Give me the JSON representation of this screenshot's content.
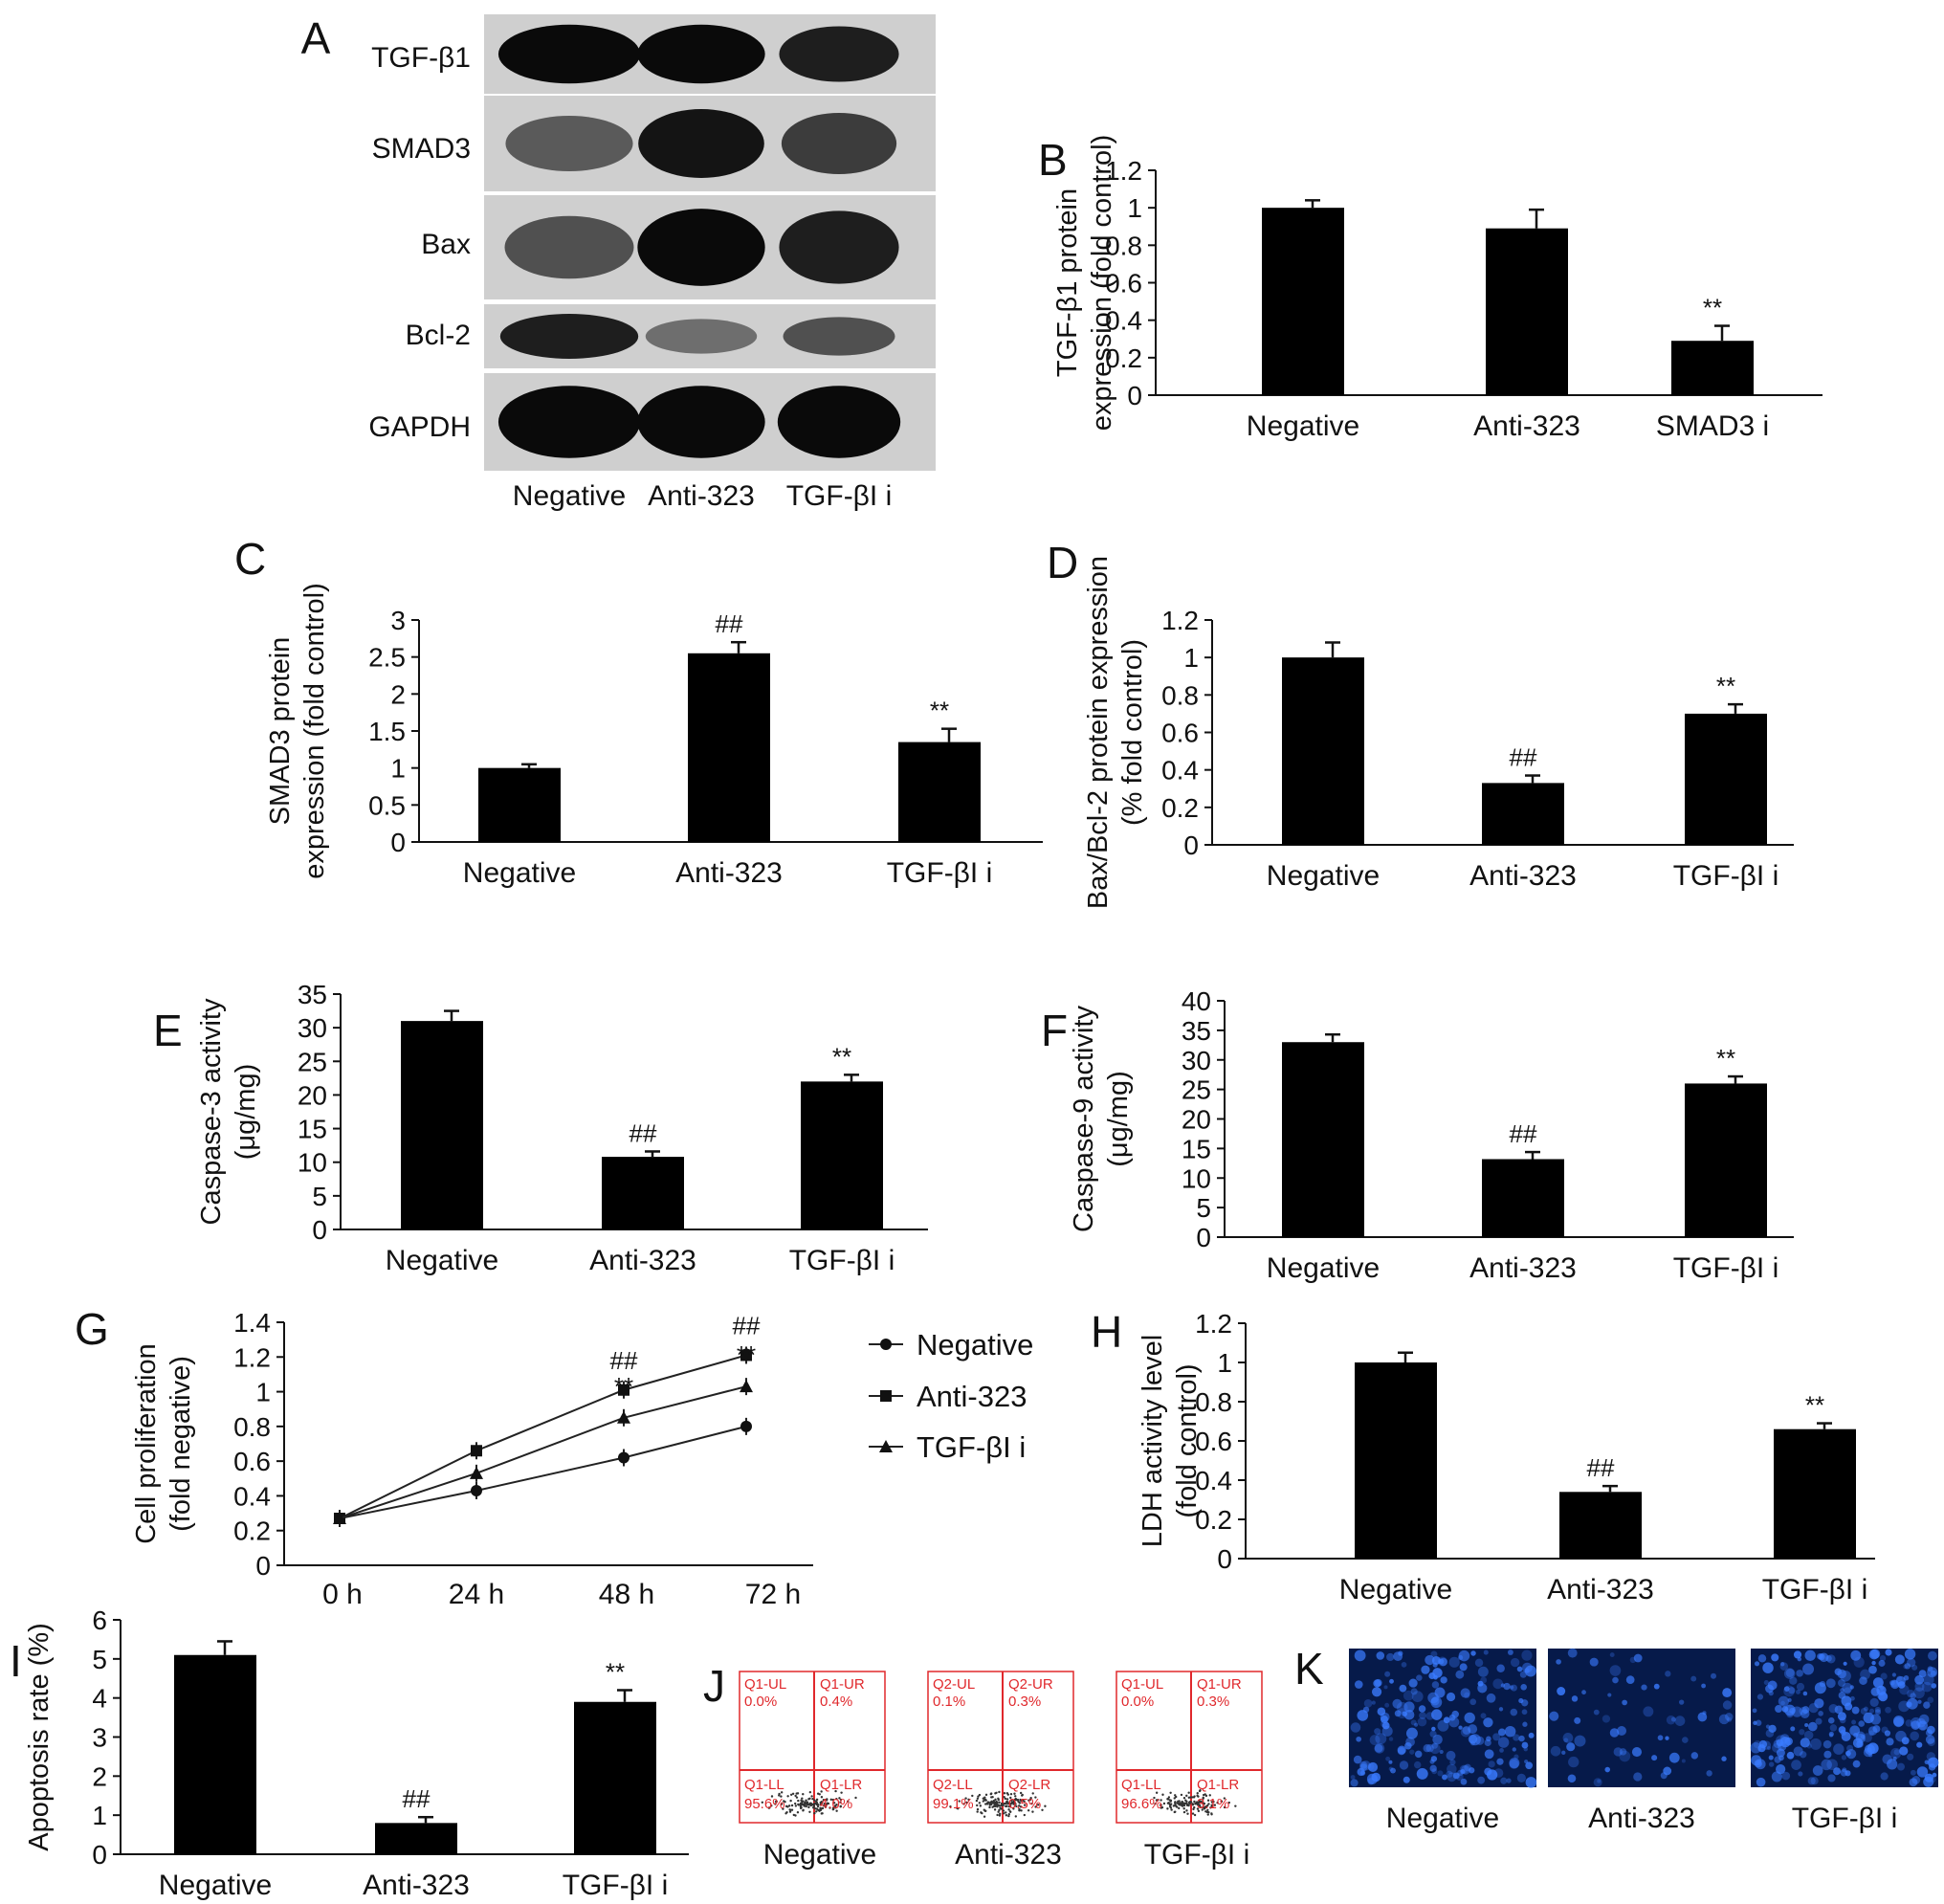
{
  "colors": {
    "bar": "#000000",
    "axis": "#111111",
    "flow_gate": "#e0282c",
    "blot_bg": "#cfcfcf",
    "fluor_bg": "#061a4a",
    "fluor_dot": "#3a7bff"
  },
  "panel_A": {
    "letter": "A",
    "proteins": [
      "TGF-β1",
      "SMAD3",
      "Bax",
      "Bcl-2",
      "GAPDH"
    ],
    "lanes": [
      "Negative",
      "Anti-323",
      "TGF-βI i"
    ],
    "band_intensity": [
      [
        0.95,
        0.95,
        0.85
      ],
      [
        0.55,
        0.9,
        0.7
      ],
      [
        0.6,
        0.95,
        0.85
      ],
      [
        0.85,
        0.45,
        0.6
      ],
      [
        0.95,
        0.95,
        0.95
      ]
    ]
  },
  "chart_data": [
    {
      "id": "B",
      "type": "bar",
      "letter": "B",
      "ylabel": [
        "TGF-β1 protein",
        "expression (fold control)"
      ],
      "categories": [
        "Negative",
        "Anti-323",
        "SMAD3 i"
      ],
      "values": [
        1.0,
        0.89,
        0.29
      ],
      "errors": [
        0.04,
        0.1,
        0.08
      ],
      "sig": [
        "",
        "",
        "**"
      ],
      "ylim": [
        0,
        1.2
      ],
      "ticks": [
        "0",
        "0.2",
        "0.4",
        "0.6",
        "0.8",
        "1",
        "1.2"
      ]
    },
    {
      "id": "C",
      "type": "bar",
      "letter": "C",
      "ylabel": [
        "SMAD3 protein",
        "expression (fold control)"
      ],
      "categories": [
        "Negative",
        "Anti-323",
        "TGF-βI i"
      ],
      "values": [
        1.0,
        2.55,
        1.35
      ],
      "errors": [
        0.05,
        0.15,
        0.18
      ],
      "sig": [
        "",
        "##",
        "**"
      ],
      "ylim": [
        0,
        3
      ],
      "ticks": [
        "0",
        "0.5",
        "1",
        "1.5",
        "2",
        "2.5",
        "3"
      ]
    },
    {
      "id": "D",
      "type": "bar",
      "letter": "D",
      "ylabel": [
        "Bax/Bcl-2 protein expression",
        "(% fold control)"
      ],
      "categories": [
        "Negative",
        "Anti-323",
        "TGF-βI i"
      ],
      "values": [
        1.0,
        0.33,
        0.7
      ],
      "errors": [
        0.08,
        0.04,
        0.05
      ],
      "sig": [
        "",
        "##",
        "**"
      ],
      "ylim": [
        0,
        1.2
      ],
      "ticks": [
        "0",
        "0.2",
        "0.4",
        "0.6",
        "0.8",
        "1",
        "1.2"
      ]
    },
    {
      "id": "E",
      "type": "bar",
      "letter": "E",
      "ylabel": [
        "Caspase-3 activity",
        "(μg/mg)"
      ],
      "categories": [
        "Negative",
        "Anti-323",
        "TGF-βI i"
      ],
      "values": [
        31,
        10.8,
        22
      ],
      "errors": [
        1.5,
        0.8,
        1.0
      ],
      "sig": [
        "",
        "##",
        "**"
      ],
      "ylim": [
        0,
        35
      ],
      "ticks": [
        "0",
        "5",
        "10",
        "15",
        "20",
        "25",
        "30",
        "35"
      ]
    },
    {
      "id": "F",
      "type": "bar",
      "letter": "F",
      "ylabel": [
        "Caspase-9 activity",
        "(μg/mg)"
      ],
      "categories": [
        "Negative",
        "Anti-323",
        "TGF-βI i"
      ],
      "values": [
        33,
        13.2,
        26
      ],
      "errors": [
        1.3,
        1.2,
        1.2
      ],
      "sig": [
        "",
        "##",
        "**"
      ],
      "ylim": [
        0,
        40
      ],
      "ticks": [
        "0",
        "5",
        "10",
        "15",
        "20",
        "25",
        "30",
        "35",
        "40"
      ]
    },
    {
      "id": "G",
      "type": "line",
      "letter": "G",
      "ylabel": [
        "Cell proliferation",
        "(fold negative)"
      ],
      "x": [
        "0 h",
        "24 h",
        "48 h",
        "72 h"
      ],
      "series": [
        {
          "name": "Negative",
          "marker": "circle",
          "values": [
            0.27,
            0.43,
            0.62,
            0.8
          ],
          "sig": [
            "",
            "",
            "",
            ""
          ]
        },
        {
          "name": "Anti-323",
          "marker": "square",
          "values": [
            0.27,
            0.66,
            1.01,
            1.21
          ],
          "sig": [
            "",
            "",
            "##",
            "##"
          ]
        },
        {
          "name": "TGF-βI i",
          "marker": "triangle",
          "values": [
            0.27,
            0.53,
            0.85,
            1.03
          ],
          "sig": [
            "",
            "",
            "**",
            "**"
          ]
        }
      ],
      "ylim": [
        0,
        1.4
      ],
      "ticks": [
        "0",
        "0.2",
        "0.4",
        "0.6",
        "0.8",
        "1",
        "1.2",
        "1.4"
      ]
    },
    {
      "id": "H",
      "type": "bar",
      "letter": "H",
      "ylabel": [
        "LDH activity level",
        "(fold control)"
      ],
      "categories": [
        "Negative",
        "Anti-323",
        "TGF-βI i"
      ],
      "values": [
        1.0,
        0.34,
        0.66
      ],
      "errors": [
        0.05,
        0.03,
        0.03
      ],
      "sig": [
        "",
        "##",
        "**"
      ],
      "ylim": [
        0,
        1.2
      ],
      "ticks": [
        "0",
        "0.2",
        "0.4",
        "0.6",
        "0.8",
        "1",
        "1.2"
      ]
    },
    {
      "id": "I",
      "type": "bar",
      "letter": "I",
      "ylabel": [
        "Apoptosis rate (%)"
      ],
      "categories": [
        "Negative",
        "Anti-323",
        "TGF-βI i"
      ],
      "values": [
        5.1,
        0.8,
        3.9
      ],
      "errors": [
        0.35,
        0.15,
        0.3
      ],
      "sig": [
        "",
        "##",
        "**"
      ],
      "ylim": [
        0,
        6
      ],
      "ticks": [
        "0",
        "1",
        "2",
        "3",
        "4",
        "5",
        "6"
      ]
    }
  ],
  "panel_J": {
    "letter": "J",
    "plots": [
      {
        "label": "Negative",
        "ul": "Q1-UL",
        "ul_v": "0.0%",
        "ur": "Q1-UR",
        "ur_v": "0.4%",
        "ll": "Q1-LL",
        "ll_v": "95.6%",
        "lr": "Q1-LR",
        "lr_v": "4.0%"
      },
      {
        "label": "Anti-323",
        "ul": "Q2-UL",
        "ul_v": "0.1%",
        "ur": "Q2-UR",
        "ur_v": "0.3%",
        "ll": "Q2-LL",
        "ll_v": "99.1%",
        "lr": "Q2-LR",
        "lr_v": "0.5%"
      },
      {
        "label": "TGF-βI i",
        "ul": "Q1-UL",
        "ul_v": "0.0%",
        "ur": "Q1-UR",
        "ur_v": "0.3%",
        "ll": "Q1-LL",
        "ll_v": "96.6%",
        "lr": "Q1-LR",
        "lr_v": "3.1%"
      }
    ]
  },
  "panel_K": {
    "letter": "K",
    "images": [
      {
        "label": "Negative",
        "density": 0.8
      },
      {
        "label": "Anti-323",
        "density": 0.25
      },
      {
        "label": "TGF-βI i",
        "density": 1.0
      }
    ]
  }
}
